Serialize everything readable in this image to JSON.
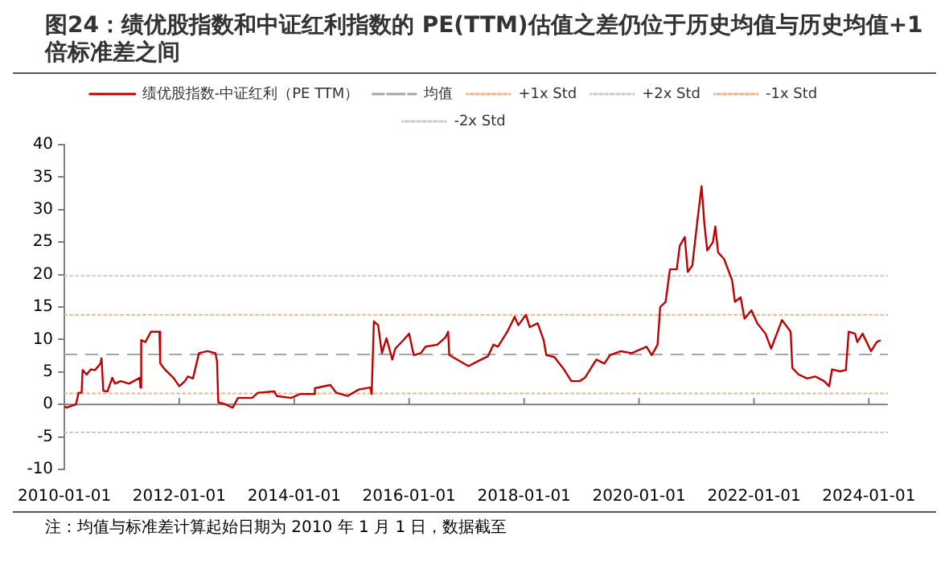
{
  "chart_data": {
    "type": "line",
    "title": "图24：绩优股指数和中证红利指数的 PE(TTM)估值之差仍位于历史均值与历史均值+1 倍标准差之间",
    "annotations": [
      "注：均值与标准差计算起始日期为 2010 年 1 月 1 日，数据截至"
    ],
    "legend": "top",
    "xlim": [
      "2010-01-01",
      "2024-05-01"
    ],
    "xticks": [
      "2010-01-01",
      "2012-01-01",
      "2014-01-01",
      "2016-01-01",
      "2018-01-01",
      "2020-01-01",
      "2022-01-01",
      "2024-01-01"
    ],
    "ylim": [
      -10,
      40
    ],
    "yticks": [
      -10,
      -5,
      0,
      5,
      10,
      15,
      20,
      25,
      30,
      35,
      40
    ],
    "ref_lines": [
      {
        "axis": "y",
        "value": 7.7,
        "label": "均值",
        "color": "#a6a6a6",
        "line_style": "dashed"
      },
      {
        "axis": "y",
        "value": 13.8,
        "label": "+1x Std",
        "color": "#f4b183",
        "line_style": "dotted"
      },
      {
        "axis": "y",
        "value": 19.8,
        "label": "+2x Std",
        "color": "#c9c9c9",
        "line_style": "dotted"
      },
      {
        "axis": "y",
        "value": 1.7,
        "label": "-1x Std",
        "color": "#f4b183",
        "line_style": "dotted"
      },
      {
        "axis": "y",
        "value": -4.3,
        "label": "-2x Std",
        "color": "#c9c9c9",
        "line_style": "dotted"
      },
      {
        "axis": "y",
        "value": 0,
        "color": "#808080",
        "line_style": "solid"
      }
    ],
    "series": [
      {
        "name": "绩优股指数-中证红利（PE TTM）",
        "color": "#c00000",
        "x": [
          "2010-01-01",
          "2010-01-15",
          "2010-03-15",
          "2010-04-01",
          "2010-04-20",
          "2010-04-27",
          "2010-05-22",
          "2010-06-18",
          "2010-07-15",
          "2010-08-18",
          "2010-08-25",
          "2010-09-05",
          "2010-10-01",
          "2010-11-01",
          "2010-11-18",
          "2010-12-25",
          "2011-02-15",
          "2011-04-25",
          "2011-04-29",
          "2011-05-04",
          "2011-05-30",
          "2011-07-05",
          "2011-08-28",
          "2011-09-02",
          "2011-10-05",
          "2011-11-25",
          "2012-01-01",
          "2012-02-06",
          "2012-02-25",
          "2012-03-28",
          "2012-05-05",
          "2012-06-28",
          "2012-08-18",
          "2012-08-28",
          "2012-09-05",
          "2012-10-12",
          "2012-12-05",
          "2013-01-08",
          "2013-04-08",
          "2013-05-15",
          "2013-08-28",
          "2013-09-12",
          "2013-12-12",
          "2014-02-06",
          "2014-05-05",
          "2014-05-12",
          "2014-08-18",
          "2014-09-25",
          "2014-12-05",
          "2015-02-15",
          "2015-04-28",
          "2015-05-08",
          "2015-05-22",
          "2015-06-18",
          "2015-07-12",
          "2015-08-10",
          "2015-09-16",
          "2015-10-05",
          "2015-11-25",
          "2016-01-01",
          "2016-01-30",
          "2016-03-15",
          "2016-04-15",
          "2016-06-28",
          "2016-08-18",
          "2016-09-05",
          "2016-09-12",
          "2016-11-02",
          "2017-01-12",
          "2017-03-08",
          "2017-05-15",
          "2017-06-20",
          "2017-07-18",
          "2017-09-16",
          "2017-11-02",
          "2017-11-25",
          "2018-01-12",
          "2018-02-06",
          "2018-03-28",
          "2018-05-05",
          "2018-05-22",
          "2018-07-12",
          "2018-09-05",
          "2018-10-28",
          "2018-12-20",
          "2019-01-22",
          "2019-04-05",
          "2019-05-26",
          "2019-07-01",
          "2019-09-08",
          "2019-11-16",
          "2020-02-18",
          "2020-03-22",
          "2020-04-28",
          "2020-05-15",
          "2020-06-18",
          "2020-07-16",
          "2020-08-28",
          "2020-09-16",
          "2020-10-18",
          "2020-11-06",
          "2020-12-05",
          "2021-01-08",
          "2021-02-02",
          "2021-02-20",
          "2021-03-10",
          "2021-04-15",
          "2021-04-30",
          "2021-05-18",
          "2021-06-25",
          "2021-08-15",
          "2021-09-02",
          "2021-10-08",
          "2021-11-02",
          "2021-12-16",
          "2022-01-22",
          "2022-03-15",
          "2022-04-20",
          "2022-05-26",
          "2022-06-28",
          "2022-08-22",
          "2022-09-02",
          "2022-10-12",
          "2022-12-05",
          "2023-01-26",
          "2023-03-22",
          "2023-04-24",
          "2023-05-12",
          "2023-07-01",
          "2023-08-08",
          "2023-08-26",
          "2023-10-05",
          "2023-10-20",
          "2023-11-22",
          "2024-01-15",
          "2024-02-20",
          "2024-03-16"
        ],
        "values": [
          -0.3,
          -0.5,
          0,
          1.8,
          1.8,
          5.3,
          4.6,
          5.4,
          5.3,
          6.3,
          7.1,
          2.1,
          2.0,
          4.1,
          3.2,
          3.6,
          3.2,
          4.1,
          2.6,
          9.9,
          9.6,
          11.2,
          11.2,
          6.3,
          5.3,
          4.1,
          2.8,
          3.6,
          4.3,
          4.0,
          7.9,
          8.2,
          7.9,
          6.6,
          0.3,
          0.1,
          -0.5,
          1.0,
          1.0,
          1.8,
          2.0,
          1.3,
          1.0,
          1.6,
          1.6,
          2.5,
          3.0,
          1.8,
          1.3,
          2.3,
          2.6,
          1.6,
          12.8,
          12.2,
          7.9,
          10.2,
          6.9,
          8.6,
          9.9,
          10.9,
          7.6,
          7.9,
          8.9,
          9.2,
          10.3,
          11.2,
          7.6,
          6.9,
          5.9,
          6.6,
          7.4,
          9.2,
          8.9,
          11.2,
          13.5,
          12.2,
          13.8,
          11.9,
          12.5,
          9.9,
          7.6,
          7.3,
          5.6,
          3.6,
          3.6,
          4.1,
          6.9,
          6.3,
          7.6,
          8.2,
          7.9,
          8.9,
          7.6,
          9.2,
          15.0,
          15.8,
          20.8,
          20.8,
          24.4,
          25.8,
          20.4,
          21.4,
          28.7,
          33.6,
          27.7,
          23.7,
          25.0,
          27.4,
          23.4,
          22.4,
          19.1,
          15.8,
          16.5,
          13.2,
          14.5,
          12.5,
          10.9,
          8.6,
          10.9,
          13.0,
          11.2,
          5.6,
          4.6,
          4.0,
          4.3,
          3.6,
          2.8,
          5.4,
          5.1,
          5.3,
          11.2,
          10.9,
          9.6,
          10.9,
          8.2,
          9.6,
          9.9
        ]
      }
    ]
  }
}
